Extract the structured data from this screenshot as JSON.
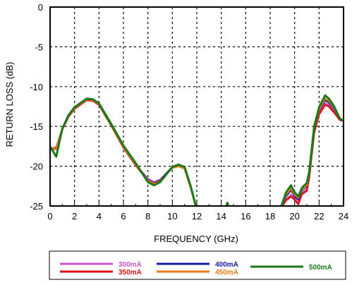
{
  "chart_data": {
    "type": "line",
    "xlabel": "FREQUENCY (GHz)",
    "ylabel": "RETURN LOSS (dB)",
    "xlim": [
      0,
      24
    ],
    "ylim": [
      -25,
      0
    ],
    "xticks": [
      "0",
      "2",
      "4",
      "6",
      "8",
      "10",
      "12",
      "14",
      "16",
      "18",
      "20",
      "22",
      "24"
    ],
    "yticks": [
      "0",
      "-5",
      "-10",
      "-15",
      "-20",
      "-25"
    ],
    "grid": true,
    "legend_position": "bottom",
    "series": [
      {
        "name": "300mA",
        "color": "#cc55cc",
        "x": [
          0,
          0.5,
          1,
          1.5,
          2,
          3,
          3.5,
          4,
          5,
          6,
          7,
          8,
          8.5,
          9,
          10,
          10.5,
          11,
          11.5,
          12
        ],
        "y": [
          -17.8,
          -17.6,
          -15.3,
          -13.7,
          -12.7,
          -11.6,
          -11.7,
          -12.2,
          -14.8,
          -17.6,
          -19.8,
          -21.6,
          -22.0,
          -21.7,
          -20.1,
          -19.9,
          -20.2,
          -22.6,
          -25.5
        ],
        "x2": [
          18.8,
          19.3,
          19.7,
          20.0,
          20.3,
          20.6,
          21.0,
          21.2,
          21.6,
          22,
          22.5,
          22.8,
          23.2,
          23.7,
          24
        ],
        "y2": [
          -25.5,
          -24.2,
          -23.6,
          -24.1,
          -24.6,
          -23.3,
          -22.9,
          -21.2,
          -15.6,
          -13.3,
          -12.1,
          -12.3,
          -13.0,
          -14.1,
          -14.3
        ]
      },
      {
        "name": "350mA",
        "color": "#dd1111",
        "x": [
          0,
          0.5,
          1,
          1.5,
          2,
          3,
          3.5,
          4,
          5,
          6,
          7,
          8,
          8.5,
          9,
          10,
          10.5,
          11,
          11.5,
          12
        ],
        "y": [
          -17.9,
          -17.8,
          -15.4,
          -13.8,
          -12.8,
          -11.7,
          -11.8,
          -12.3,
          -14.9,
          -17.7,
          -19.9,
          -21.8,
          -22.1,
          -21.8,
          -20.2,
          -20.0,
          -20.3,
          -22.7,
          -25.5
        ],
        "x2": [
          18.8,
          19.3,
          19.7,
          20.0,
          20.3,
          20.6,
          21.0,
          21.2,
          21.6,
          22,
          22.5,
          22.8,
          23.2,
          23.7,
          24
        ],
        "y2": [
          -25.5,
          -24.3,
          -23.8,
          -24.2,
          -24.8,
          -23.5,
          -23.1,
          -21.4,
          -15.8,
          -13.5,
          -12.3,
          -12.5,
          -13.2,
          -14.2,
          -14.3
        ]
      },
      {
        "name": "400mA",
        "color": "#1a1aa0",
        "x": [
          0,
          0.5,
          1,
          1.5,
          2,
          3,
          3.5,
          4,
          5,
          6,
          7,
          8,
          8.5,
          9,
          10,
          10.5,
          11,
          11.5,
          12
        ],
        "y": [
          -17.8,
          -17.7,
          -15.3,
          -13.7,
          -12.7,
          -11.6,
          -11.7,
          -12.2,
          -14.8,
          -17.6,
          -19.8,
          -21.7,
          -22.1,
          -21.8,
          -20.1,
          -19.9,
          -20.2,
          -22.6,
          -25.5
        ],
        "x2": [
          18.8,
          19.3,
          19.7,
          20.0,
          20.3,
          20.6,
          21.0,
          21.2,
          21.6,
          22,
          22.5,
          22.8,
          23.2,
          23.7,
          24
        ],
        "y2": [
          -25.5,
          -23.8,
          -23.0,
          -23.8,
          -24.2,
          -23.0,
          -22.5,
          -21.0,
          -15.3,
          -13.0,
          -11.7,
          -12.0,
          -12.7,
          -14.0,
          -14.3
        ]
      },
      {
        "name": "450mA",
        "color": "#e87a1a",
        "x": [
          0,
          0.5,
          1,
          1.5,
          2,
          3,
          3.5,
          4,
          5,
          6,
          7,
          8,
          8.5,
          9,
          10,
          10.5,
          11,
          11.5,
          12
        ],
        "y": [
          -17.8,
          -17.7,
          -15.3,
          -13.7,
          -12.7,
          -11.6,
          -11.7,
          -12.2,
          -14.8,
          -17.6,
          -19.8,
          -21.8,
          -22.2,
          -21.9,
          -20.2,
          -20.0,
          -20.3,
          -22.7,
          -25.5
        ],
        "x2": [
          18.8,
          19.3,
          19.7,
          20.0,
          20.3,
          20.6,
          21.0,
          21.2,
          21.6,
          22,
          22.5,
          22.8,
          23.2,
          23.7,
          24
        ],
        "y2": [
          -25.5,
          -23.6,
          -22.8,
          -23.6,
          -24.0,
          -22.9,
          -22.4,
          -20.9,
          -15.2,
          -12.9,
          -11.5,
          -11.8,
          -12.6,
          -14.0,
          -14.3
        ]
      },
      {
        "name": "500mA",
        "color": "#1a7a1a",
        "x": [
          0,
          0.5,
          1,
          1.5,
          2,
          3,
          3.5,
          4,
          5,
          6,
          7,
          8,
          8.5,
          9,
          10,
          10.5,
          11,
          11.5,
          12
        ],
        "y": [
          -17.5,
          -18.8,
          -15.3,
          -13.6,
          -12.6,
          -11.5,
          -11.6,
          -12.1,
          -14.7,
          -17.4,
          -19.6,
          -22.0,
          -22.4,
          -22.0,
          -20.1,
          -19.8,
          -20.1,
          -22.5,
          -25.5
        ],
        "x2": [
          14.3,
          14.5,
          14.7,
          18.8,
          19.3,
          19.7,
          20.0,
          20.3,
          20.6,
          21.0,
          21.2,
          21.6,
          22,
          22.5,
          22.8,
          23.2,
          23.7,
          24
        ],
        "y2": [
          -25.5,
          -24.6,
          -25.5,
          -25.5,
          -23.3,
          -22.4,
          -23.3,
          -23.8,
          -22.7,
          -22.1,
          -20.6,
          -15.0,
          -12.6,
          -11.1,
          -11.5,
          -12.4,
          -14.0,
          -14.3
        ]
      }
    ]
  }
}
